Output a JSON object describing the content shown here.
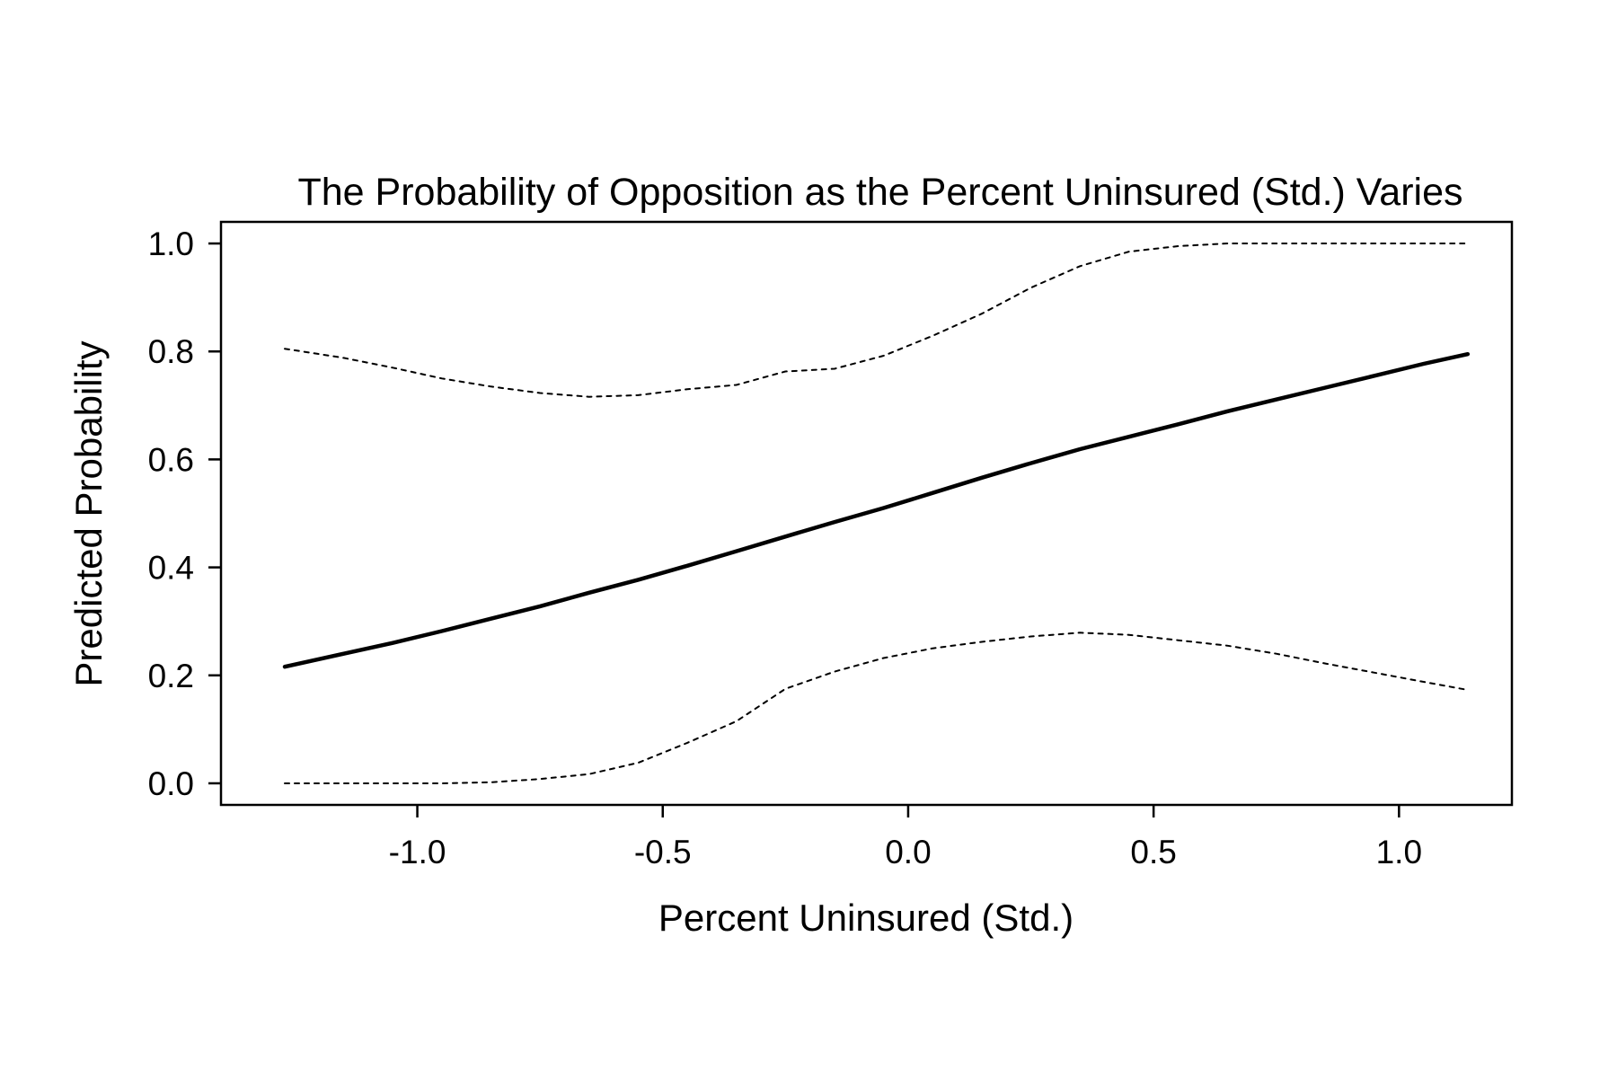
{
  "chart_data": {
    "type": "line",
    "title": "The Probability of Opposition as the Percent Uninsured (Std.) Varies",
    "xlabel": "Percent Uninsured (Std.)",
    "ylabel": "Predicted Probability",
    "xlim": [
      -1.4,
      1.23
    ],
    "ylim": [
      -0.04,
      1.04
    ],
    "xticks": [
      {
        "value": -1.0,
        "label": "-1.0"
      },
      {
        "value": -0.5,
        "label": "-0.5"
      },
      {
        "value": 0.0,
        "label": "0.0"
      },
      {
        "value": 0.5,
        "label": "0.5"
      },
      {
        "value": 1.0,
        "label": "1.0"
      }
    ],
    "yticks": [
      {
        "value": 0.0,
        "label": "0.0"
      },
      {
        "value": 0.2,
        "label": "0.2"
      },
      {
        "value": 0.4,
        "label": "0.4"
      },
      {
        "value": 0.6,
        "label": "0.6"
      },
      {
        "value": 0.8,
        "label": "0.8"
      },
      {
        "value": 1.0,
        "label": "1.0"
      }
    ],
    "grid": false,
    "series": [
      {
        "role": "estimate",
        "style": "solid",
        "color": "#000000",
        "x": [
          -1.27,
          -1.15,
          -1.05,
          -0.95,
          -0.85,
          -0.75,
          -0.65,
          -0.55,
          -0.45,
          -0.35,
          -0.25,
          -0.15,
          -0.05,
          0.05,
          0.15,
          0.25,
          0.35,
          0.45,
          0.55,
          0.65,
          0.75,
          0.85,
          0.95,
          1.05,
          1.14
        ],
        "y": [
          0.216,
          0.24,
          0.26,
          0.282,
          0.305,
          0.328,
          0.353,
          0.377,
          0.403,
          0.43,
          0.457,
          0.484,
          0.51,
          0.538,
          0.566,
          0.593,
          0.619,
          0.642,
          0.665,
          0.689,
          0.711,
          0.733,
          0.755,
          0.777,
          0.795
        ]
      },
      {
        "role": "upper-bound",
        "style": "dotted",
        "color": "#000000",
        "x": [
          -1.27,
          -1.15,
          -1.05,
          -0.95,
          -0.85,
          -0.75,
          -0.65,
          -0.55,
          -0.45,
          -0.35,
          -0.25,
          -0.15,
          -0.05,
          0.05,
          0.15,
          0.25,
          0.35,
          0.45,
          0.55,
          0.65,
          0.75,
          0.85,
          0.95,
          1.05,
          1.14
        ],
        "y": [
          0.805,
          0.788,
          0.77,
          0.75,
          0.735,
          0.723,
          0.716,
          0.719,
          0.73,
          0.738,
          0.763,
          0.768,
          0.792,
          0.829,
          0.87,
          0.918,
          0.958,
          0.985,
          0.995,
          1.0,
          1.0,
          1.0,
          1.0,
          1.0,
          1.0
        ]
      },
      {
        "role": "lower-bound",
        "style": "dotted",
        "color": "#000000",
        "x": [
          -1.27,
          -1.15,
          -1.05,
          -0.95,
          -0.85,
          -0.75,
          -0.65,
          -0.55,
          -0.45,
          -0.35,
          -0.25,
          -0.15,
          -0.05,
          0.05,
          0.15,
          0.25,
          0.35,
          0.45,
          0.55,
          0.65,
          0.75,
          0.85,
          0.95,
          1.05,
          1.14
        ],
        "y": [
          0.0,
          0.0,
          0.0,
          0.0,
          0.002,
          0.008,
          0.017,
          0.038,
          0.075,
          0.115,
          0.175,
          0.207,
          0.232,
          0.25,
          0.262,
          0.272,
          0.279,
          0.275,
          0.265,
          0.255,
          0.24,
          0.222,
          0.205,
          0.188,
          0.173
        ]
      }
    ]
  }
}
